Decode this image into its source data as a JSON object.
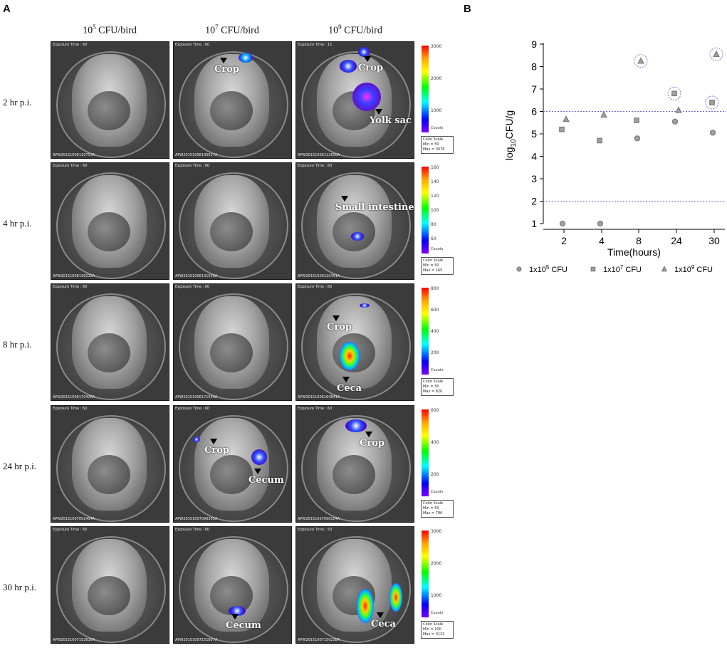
{
  "panel_a": {
    "letter": "A",
    "columns": [
      {
        "base": "10",
        "exp": "5",
        "suffix": " CFU/bird"
      },
      {
        "base": "10",
        "exp": "7",
        "suffix": " CFU/bird"
      },
      {
        "base": "10",
        "exp": "9",
        "suffix": " CFU/bird"
      }
    ],
    "rows": [
      {
        "label": "2 hr p.i.",
        "colorbar": {
          "ticks": [
            "3000",
            "2000",
            "1000"
          ],
          "counts": "Counts",
          "scale": [
            "Color Scale",
            "Min = 50",
            "Max = 3076"
          ]
        },
        "tiles": [
          {
            "exposure": "Exposure Time : 60",
            "id": "APW20151006110753A",
            "annotations": []
          },
          {
            "exposure": "Exposure Time : 60",
            "id": "APW20151006105617A",
            "annotations": [
              "Crop"
            ]
          },
          {
            "exposure": "Exposure Time : 15",
            "id": "APW20151006112650A",
            "annotations": [
              "Crop",
              "Yolk sac"
            ]
          }
        ]
      },
      {
        "label": "4 hr p.i.",
        "colorbar": {
          "ticks": [
            "160",
            "140",
            "120",
            "100",
            "80",
            "60"
          ],
          "counts": "Counts",
          "scale": [
            "Color Scale",
            "Min = 50",
            "Max = 165"
          ]
        },
        "tiles": [
          {
            "exposure": "Exposure Time : 60",
            "id": "APW20151006130215A",
            "annotations": []
          },
          {
            "exposure": "Exposure Time : 60",
            "id": "APW20151006131550A",
            "annotations": []
          },
          {
            "exposure": "Exposure Time : 60",
            "id": "APW20151006125451A",
            "annotations": [
              "Small intestines"
            ]
          }
        ]
      },
      {
        "label": "8 hr p.i.",
        "colorbar": {
          "ticks": [
            "800",
            "600",
            "400",
            "200"
          ],
          "counts": "Counts",
          "scale": [
            "Color Scale",
            "Min = 50",
            "Max = 820"
          ]
        },
        "tiles": [
          {
            "exposure": "Exposure Time : 60",
            "id": "APW20151006170426A",
            "annotations": []
          },
          {
            "exposure": "Exposure Time : 60",
            "id": "APW20151006171540A",
            "annotations": []
          },
          {
            "exposure": "Exposure Time : 60",
            "id": "APW20151006164841A",
            "annotations": [
              "Crop",
              "Ceca"
            ]
          }
        ]
      },
      {
        "label": "24 hr p.i.",
        "colorbar": {
          "ticks": [
            "600",
            "400",
            "200"
          ],
          "counts": "Counts",
          "scale": [
            "Color Scale",
            "Min = 50",
            "Max = 796"
          ]
        },
        "tiles": [
          {
            "exposure": "Exposure Time : 60",
            "id": "APW20151007091454A",
            "annotations": []
          },
          {
            "exposure": "Exposure Time : 60",
            "id": "APW20151007090305A",
            "annotations": [
              "Crop",
              "Cecum"
            ]
          },
          {
            "exposure": "Exposure Time : 60",
            "id": "APW20151007090104A",
            "annotations": [
              "Crop"
            ]
          }
        ]
      },
      {
        "label": "30 hr p.i.",
        "colorbar": {
          "ticks": [
            "3000",
            "2000",
            "1000"
          ],
          "counts": "Counts",
          "scale": [
            "Color Scale",
            "Min = 100",
            "Max = 3121"
          ]
        },
        "tiles": [
          {
            "exposure": "Exposure Time : 60",
            "id": "APW20151007152616A",
            "annotations": []
          },
          {
            "exposure": "Exposure Time : 60",
            "id": "APW20151007151807A",
            "annotations": [
              "Cecum"
            ]
          },
          {
            "exposure": "Exposure Time : 50",
            "id": "APW20151007150238A",
            "annotations": [
              "Ceca"
            ]
          }
        ]
      }
    ]
  },
  "panel_b": {
    "letter": "B"
  },
  "chart_data": {
    "type": "scatter",
    "xlabel": "Time(hours)",
    "ylabel_base": "log",
    "ylabel_sub": "10",
    "ylabel_rest": "CFU/g",
    "categories": [
      "2",
      "4",
      "8",
      "24",
      "30"
    ],
    "ylim": [
      1,
      9
    ],
    "yticks": [
      1,
      2,
      3,
      4,
      5,
      6,
      7,
      8,
      9
    ],
    "reference_lines": [
      6,
      2
    ],
    "series": [
      {
        "name_pre": "1x10",
        "name_exp": "5",
        "name_post": " CFU",
        "marker": "circle",
        "values": [
          1.0,
          1.0,
          4.8,
          5.55,
          5.05
        ]
      },
      {
        "name_pre": "1x10",
        "name_exp": "7",
        "name_post": " CFU",
        "marker": "square",
        "values": [
          5.2,
          4.7,
          5.6,
          6.8,
          6.4
        ]
      },
      {
        "name_pre": "1x10",
        "name_exp": "9",
        "name_post": " CFU",
        "marker": "triangle",
        "values": [
          5.65,
          5.85,
          8.25,
          6.05,
          8.55
        ]
      }
    ],
    "circled_points": [
      {
        "series": 2,
        "category": 2
      },
      {
        "series": 1,
        "category": 3
      },
      {
        "series": 1,
        "category": 4
      },
      {
        "series": 2,
        "category": 4
      }
    ],
    "colors": {
      "marker_fill": "#a0a0a0",
      "marker_stroke": "#6f6f6f",
      "ref_line": "#6b6bd6",
      "circle": "#7a78d8"
    }
  }
}
